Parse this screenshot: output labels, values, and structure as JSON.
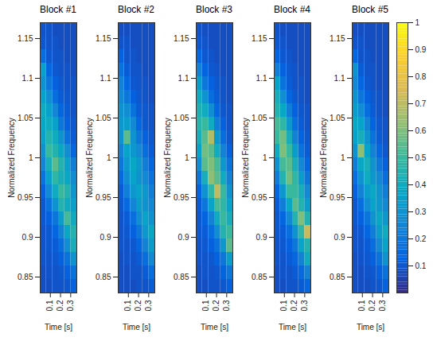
{
  "chart_data": [
    {
      "type": "heatmap",
      "title": "Block #1",
      "xlabel": "Time [s]",
      "ylabel": "Normalized Frequency",
      "xlim": [
        0,
        0.36
      ],
      "xticks": [
        0.1,
        0.2,
        0.3
      ],
      "ylim": [
        0.83,
        1.17
      ],
      "yticks": [
        0.85,
        0.9,
        0.95,
        1,
        1.05,
        1.1,
        1.15
      ],
      "time_bins": [
        0,
        0.06,
        0.12,
        0.18,
        0.24,
        0.3,
        0.36
      ],
      "frequency_bins": [
        0.83,
        0.847,
        0.864,
        0.881,
        0.898,
        0.915,
        0.932,
        0.949,
        0.966,
        0.983,
        1.0,
        1.017,
        1.034,
        1.051,
        1.068,
        1.085,
        1.102,
        1.119,
        1.136,
        1.153,
        1.17
      ],
      "cells": [
        [
          0.08,
          0.08,
          0.09,
          0.09,
          0.1,
          0.12
        ],
        [
          0.08,
          0.09,
          0.09,
          0.1,
          0.12,
          0.18
        ],
        [
          0.09,
          0.09,
          0.1,
          0.12,
          0.18,
          0.3
        ],
        [
          0.09,
          0.1,
          0.11,
          0.16,
          0.28,
          0.42
        ],
        [
          0.09,
          0.1,
          0.14,
          0.24,
          0.38,
          0.45
        ],
        [
          0.1,
          0.12,
          0.2,
          0.34,
          0.52,
          0.4
        ],
        [
          0.1,
          0.18,
          0.3,
          0.45,
          0.4,
          0.35
        ],
        [
          0.12,
          0.26,
          0.4,
          0.5,
          0.45,
          0.32
        ],
        [
          0.18,
          0.35,
          0.48,
          0.42,
          0.38,
          0.28
        ],
        [
          0.25,
          0.42,
          0.55,
          0.45,
          0.35,
          0.22
        ],
        [
          0.3,
          0.5,
          0.45,
          0.38,
          0.28,
          0.14
        ],
        [
          0.35,
          0.45,
          0.4,
          0.3,
          0.18,
          0.11
        ],
        [
          0.38,
          0.4,
          0.35,
          0.2,
          0.12,
          0.1
        ],
        [
          0.4,
          0.35,
          0.25,
          0.14,
          0.11,
          0.09
        ],
        [
          0.36,
          0.28,
          0.16,
          0.11,
          0.1,
          0.09
        ],
        [
          0.3,
          0.2,
          0.12,
          0.1,
          0.09,
          0.09
        ],
        [
          0.35,
          0.14,
          0.1,
          0.09,
          0.09,
          0.08
        ],
        [
          0.16,
          0.1,
          0.09,
          0.09,
          0.08,
          0.08
        ],
        [
          0.1,
          0.09,
          0.09,
          0.08,
          0.08,
          0.08
        ],
        [
          0.09,
          0.09,
          0.08,
          0.08,
          0.08,
          0.08
        ]
      ]
    },
    {
      "type": "heatmap",
      "title": "Block #2",
      "xlabel": "Time [s]",
      "ylabel": "Normalized Frequency",
      "xlim": [
        0,
        0.36
      ],
      "xticks": [
        0.1,
        0.2,
        0.3
      ],
      "ylim": [
        0.83,
        1.17
      ],
      "yticks": [
        0.85,
        0.9,
        0.95,
        1,
        1.05,
        1.1,
        1.15
      ],
      "time_bins": [
        0,
        0.06,
        0.12,
        0.18,
        0.24,
        0.3,
        0.36
      ],
      "frequency_bins": [
        0.83,
        0.847,
        0.864,
        0.881,
        0.898,
        0.915,
        0.932,
        0.949,
        0.966,
        0.983,
        1.0,
        1.017,
        1.034,
        1.051,
        1.068,
        1.085,
        1.102,
        1.119,
        1.136,
        1.153,
        1.17
      ],
      "cells": [
        [
          0.08,
          0.08,
          0.08,
          0.09,
          0.09,
          0.11
        ],
        [
          0.08,
          0.08,
          0.09,
          0.09,
          0.11,
          0.16
        ],
        [
          0.08,
          0.09,
          0.09,
          0.11,
          0.16,
          0.26
        ],
        [
          0.09,
          0.09,
          0.1,
          0.14,
          0.24,
          0.34
        ],
        [
          0.09,
          0.1,
          0.12,
          0.2,
          0.32,
          0.38
        ],
        [
          0.09,
          0.11,
          0.17,
          0.28,
          0.36,
          0.3
        ],
        [
          0.1,
          0.15,
          0.25,
          0.34,
          0.3,
          0.26
        ],
        [
          0.11,
          0.22,
          0.32,
          0.36,
          0.32,
          0.22
        ],
        [
          0.15,
          0.28,
          0.36,
          0.3,
          0.26,
          0.18
        ],
        [
          0.2,
          0.32,
          0.38,
          0.32,
          0.22,
          0.14
        ],
        [
          0.24,
          0.36,
          0.32,
          0.26,
          0.16,
          0.11
        ],
        [
          0.3,
          0.55,
          0.3,
          0.2,
          0.12,
          0.1
        ],
        [
          0.32,
          0.34,
          0.26,
          0.14,
          0.1,
          0.09
        ],
        [
          0.3,
          0.28,
          0.18,
          0.11,
          0.1,
          0.09
        ],
        [
          0.26,
          0.2,
          0.12,
          0.1,
          0.09,
          0.08
        ],
        [
          0.24,
          0.14,
          0.1,
          0.09,
          0.09,
          0.08
        ],
        [
          0.18,
          0.11,
          0.09,
          0.09,
          0.08,
          0.08
        ],
        [
          0.12,
          0.09,
          0.09,
          0.08,
          0.08,
          0.08
        ],
        [
          0.09,
          0.09,
          0.08,
          0.08,
          0.08,
          0.08
        ],
        [
          0.08,
          0.08,
          0.08,
          0.08,
          0.08,
          0.08
        ]
      ]
    },
    {
      "type": "heatmap",
      "title": "Block #3",
      "xlabel": "Time [s]",
      "ylabel": "Normalized Frequency",
      "xlim": [
        0,
        0.36
      ],
      "xticks": [
        0.1,
        0.2,
        0.3
      ],
      "ylim": [
        0.83,
        1.17
      ],
      "yticks": [
        0.85,
        0.9,
        0.95,
        1,
        1.05,
        1.1,
        1.15
      ],
      "time_bins": [
        0,
        0.06,
        0.12,
        0.18,
        0.24,
        0.3,
        0.36
      ],
      "frequency_bins": [
        0.83,
        0.847,
        0.864,
        0.881,
        0.898,
        0.915,
        0.932,
        0.949,
        0.966,
        0.983,
        1.0,
        1.017,
        1.034,
        1.051,
        1.068,
        1.085,
        1.102,
        1.119,
        1.136,
        1.153,
        1.17
      ],
      "cells": [
        [
          0.08,
          0.08,
          0.09,
          0.09,
          0.1,
          0.12
        ],
        [
          0.08,
          0.09,
          0.09,
          0.1,
          0.13,
          0.2
        ],
        [
          0.09,
          0.09,
          0.1,
          0.13,
          0.2,
          0.34
        ],
        [
          0.09,
          0.1,
          0.12,
          0.18,
          0.32,
          0.55
        ],
        [
          0.1,
          0.11,
          0.16,
          0.28,
          0.45,
          0.5
        ],
        [
          0.1,
          0.13,
          0.24,
          0.4,
          0.5,
          0.42
        ],
        [
          0.11,
          0.2,
          0.36,
          0.52,
          0.48,
          0.36
        ],
        [
          0.13,
          0.3,
          0.48,
          0.7,
          0.5,
          0.3
        ],
        [
          0.2,
          0.42,
          0.62,
          0.55,
          0.4,
          0.24
        ],
        [
          0.28,
          0.55,
          0.6,
          0.52,
          0.32,
          0.18
        ],
        [
          0.36,
          0.58,
          0.55,
          0.4,
          0.24,
          0.12
        ],
        [
          0.42,
          0.55,
          0.68,
          0.32,
          0.16,
          0.1
        ],
        [
          0.46,
          0.5,
          0.4,
          0.22,
          0.12,
          0.09
        ],
        [
          0.44,
          0.4,
          0.28,
          0.14,
          0.1,
          0.09
        ],
        [
          0.4,
          0.3,
          0.16,
          0.11,
          0.09,
          0.08
        ],
        [
          0.34,
          0.2,
          0.12,
          0.1,
          0.09,
          0.08
        ],
        [
          0.24,
          0.13,
          0.1,
          0.09,
          0.08,
          0.08
        ],
        [
          0.14,
          0.1,
          0.09,
          0.08,
          0.08,
          0.08
        ],
        [
          0.1,
          0.09,
          0.08,
          0.08,
          0.08,
          0.08
        ],
        [
          0.09,
          0.08,
          0.08,
          0.08,
          0.08,
          0.08
        ]
      ]
    },
    {
      "type": "heatmap",
      "title": "Block #4",
      "xlabel": "Time [s]",
      "ylabel": "Normalized Frequency",
      "xlim": [
        0,
        0.36
      ],
      "xticks": [
        0.1,
        0.2,
        0.3
      ],
      "ylim": [
        0.83,
        1.17
      ],
      "yticks": [
        0.85,
        0.9,
        0.95,
        1,
        1.05,
        1.1,
        1.15
      ],
      "time_bins": [
        0,
        0.06,
        0.12,
        0.18,
        0.24,
        0.3,
        0.36
      ],
      "frequency_bins": [
        0.83,
        0.847,
        0.864,
        0.881,
        0.898,
        0.915,
        0.932,
        0.949,
        0.966,
        0.983,
        1.0,
        1.017,
        1.034,
        1.051,
        1.068,
        1.085,
        1.102,
        1.119,
        1.136,
        1.153,
        1.17
      ],
      "cells": [
        [
          0.08,
          0.08,
          0.09,
          0.09,
          0.11,
          0.14
        ],
        [
          0.08,
          0.09,
          0.09,
          0.11,
          0.15,
          0.24
        ],
        [
          0.09,
          0.09,
          0.11,
          0.14,
          0.24,
          0.4
        ],
        [
          0.09,
          0.1,
          0.12,
          0.2,
          0.36,
          0.45
        ],
        [
          0.1,
          0.11,
          0.17,
          0.3,
          0.48,
          0.72
        ],
        [
          0.1,
          0.14,
          0.26,
          0.45,
          0.6,
          0.45
        ],
        [
          0.11,
          0.22,
          0.38,
          0.55,
          0.45,
          0.34
        ],
        [
          0.14,
          0.32,
          0.5,
          0.5,
          0.42,
          0.26
        ],
        [
          0.22,
          0.45,
          0.58,
          0.48,
          0.34,
          0.2
        ],
        [
          0.3,
          0.52,
          0.55,
          0.42,
          0.26,
          0.14
        ],
        [
          0.4,
          0.6,
          0.5,
          0.34,
          0.18,
          0.11
        ],
        [
          0.5,
          0.58,
          0.42,
          0.24,
          0.13,
          0.1
        ],
        [
          0.52,
          0.48,
          0.32,
          0.16,
          0.11,
          0.09
        ],
        [
          0.45,
          0.38,
          0.22,
          0.12,
          0.1,
          0.09
        ],
        [
          0.42,
          0.28,
          0.14,
          0.1,
          0.09,
          0.08
        ],
        [
          0.36,
          0.18,
          0.11,
          0.09,
          0.09,
          0.08
        ],
        [
          0.22,
          0.12,
          0.1,
          0.09,
          0.08,
          0.08
        ],
        [
          0.13,
          0.1,
          0.09,
          0.08,
          0.08,
          0.08
        ],
        [
          0.1,
          0.09,
          0.08,
          0.08,
          0.08,
          0.08
        ],
        [
          0.09,
          0.08,
          0.08,
          0.08,
          0.08,
          0.08
        ]
      ]
    },
    {
      "type": "heatmap",
      "title": "Block #5",
      "xlabel": "Time [s]",
      "ylabel": "Normalized Frequency",
      "xlim": [
        0,
        0.36
      ],
      "xticks": [
        0.1,
        0.2,
        0.3
      ],
      "ylim": [
        0.83,
        1.17
      ],
      "yticks": [
        0.85,
        0.9,
        0.95,
        1,
        1.05,
        1.1,
        1.15
      ],
      "time_bins": [
        0,
        0.06,
        0.12,
        0.18,
        0.24,
        0.3,
        0.36
      ],
      "frequency_bins": [
        0.83,
        0.847,
        0.864,
        0.881,
        0.898,
        0.915,
        0.932,
        0.949,
        0.966,
        0.983,
        1.0,
        1.017,
        1.034,
        1.051,
        1.068,
        1.085,
        1.102,
        1.119,
        1.136,
        1.153,
        1.17
      ],
      "cells": [
        [
          0.08,
          0.08,
          0.08,
          0.09,
          0.1,
          0.12
        ],
        [
          0.08,
          0.08,
          0.09,
          0.1,
          0.12,
          0.18
        ],
        [
          0.08,
          0.09,
          0.1,
          0.12,
          0.18,
          0.3
        ],
        [
          0.09,
          0.09,
          0.11,
          0.16,
          0.26,
          0.36
        ],
        [
          0.09,
          0.1,
          0.14,
          0.22,
          0.34,
          0.4
        ],
        [
          0.1,
          0.12,
          0.19,
          0.3,
          0.38,
          0.32
        ],
        [
          0.1,
          0.16,
          0.28,
          0.36,
          0.32,
          0.26
        ],
        [
          0.12,
          0.24,
          0.34,
          0.38,
          0.3,
          0.22
        ],
        [
          0.16,
          0.3,
          0.4,
          0.32,
          0.26,
          0.16
        ],
        [
          0.22,
          0.38,
          0.42,
          0.3,
          0.2,
          0.12
        ],
        [
          0.3,
          0.62,
          0.36,
          0.24,
          0.14,
          0.1
        ],
        [
          0.36,
          0.42,
          0.3,
          0.18,
          0.11,
          0.09
        ],
        [
          0.38,
          0.36,
          0.24,
          0.13,
          0.1,
          0.09
        ],
        [
          0.34,
          0.28,
          0.16,
          0.11,
          0.09,
          0.08
        ],
        [
          0.3,
          0.2,
          0.12,
          0.1,
          0.09,
          0.08
        ],
        [
          0.26,
          0.14,
          0.1,
          0.09,
          0.08,
          0.08
        ],
        [
          0.3,
          0.11,
          0.09,
          0.09,
          0.08,
          0.08
        ],
        [
          0.14,
          0.09,
          0.09,
          0.08,
          0.08,
          0.08
        ],
        [
          0.09,
          0.09,
          0.08,
          0.08,
          0.08,
          0.08
        ],
        [
          0.08,
          0.08,
          0.08,
          0.08,
          0.08,
          0.08
        ]
      ],
      "colorbar_range": [
        0,
        1
      ],
      "colorbar_ticks": [
        0.1,
        0.2,
        0.3,
        0.4,
        0.5,
        0.6,
        0.7,
        0.8,
        0.9,
        1
      ]
    }
  ]
}
